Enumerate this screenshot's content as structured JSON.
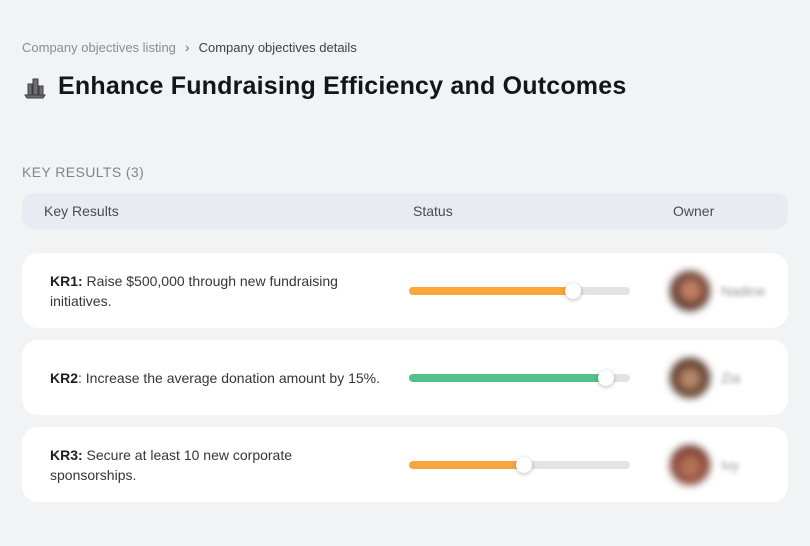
{
  "breadcrumb": {
    "separator": "›",
    "items": [
      {
        "label": "Company objectives listing"
      },
      {
        "label": "Company objectives details"
      }
    ]
  },
  "header": {
    "icon": "cityscape-icon",
    "title": "Enhance Fundraising Efficiency and Outcomes"
  },
  "section": {
    "label": "KEY RESULTS (3)"
  },
  "table": {
    "columns": {
      "key_results": "Key Results",
      "status": "Status",
      "owner": "Owner"
    },
    "rows": [
      {
        "kr_label": "KR1:",
        "kr_text": " Raise $500,000 through new fundraising initiatives.",
        "progress_percent": 74,
        "progress_color": "#f9a63c",
        "owner_name": "Nadine"
      },
      {
        "kr_label": "KR2",
        "kr_text": ": Increase the average donation amount by 15%.",
        "progress_percent": 89,
        "progress_color": "#52c18b",
        "owner_name": "Zia"
      },
      {
        "kr_label": "KR3:",
        "kr_text": " Secure at least 10 new corporate sponsorships.",
        "progress_percent": 52,
        "progress_color": "#f9a63c",
        "owner_name": "Ivy"
      }
    ]
  },
  "colors": {
    "page_background": "#f2f3f5",
    "table_header_background": "#e8ebf2",
    "progress_track": "#e3e3e6",
    "status_orange": "#f9a63c",
    "status_green": "#52c18b"
  }
}
